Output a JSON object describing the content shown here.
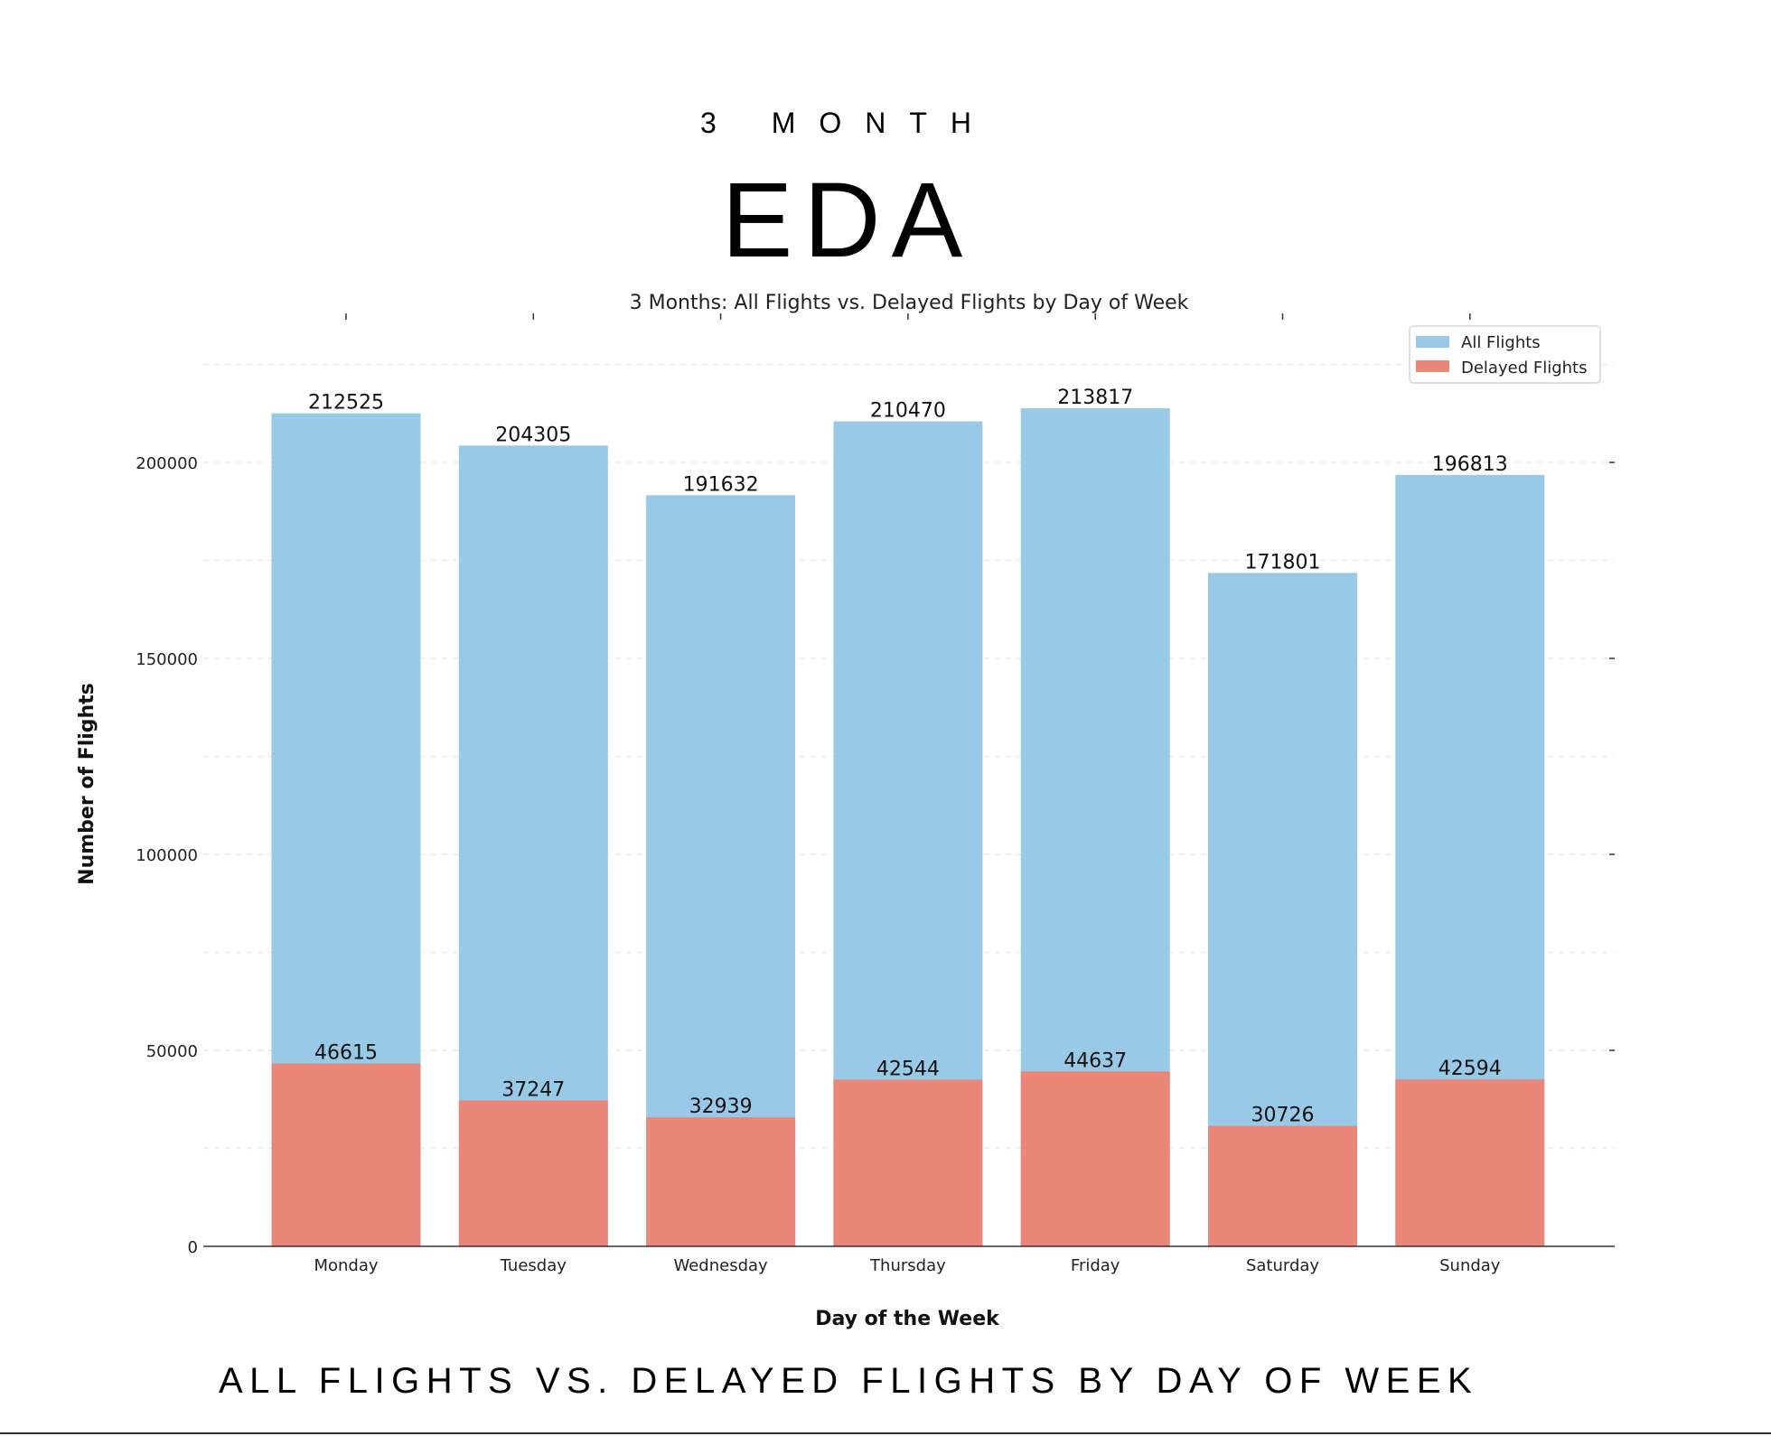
{
  "header": {
    "kicker": "3 MONTH",
    "headline": "EDA"
  },
  "footer": {
    "caption": "ALL FLIGHTS VS. DELAYED FLIGHTS BY DAY OF WEEK"
  },
  "chart_data": {
    "type": "bar",
    "title": "3 Months: All Flights vs. Delayed Flights by Day of Week",
    "xlabel": "Day of the Week",
    "ylabel": "Number of Flights",
    "categories": [
      "Monday",
      "Tuesday",
      "Wednesday",
      "Thursday",
      "Friday",
      "Saturday",
      "Sunday"
    ],
    "series": [
      {
        "name": "All Flights",
        "color": "#98CAE8",
        "values": [
          212525,
          204305,
          191632,
          210470,
          213817,
          171801,
          196813
        ]
      },
      {
        "name": "Delayed Flights",
        "color": "#EA8778",
        "values": [
          46615,
          37247,
          32939,
          42544,
          44637,
          30726,
          42594
        ]
      }
    ],
    "ylim": [
      0,
      225000
    ],
    "yticks": [
      0,
      50000,
      100000,
      150000,
      200000
    ],
    "grid": true,
    "legend": "top-right"
  }
}
